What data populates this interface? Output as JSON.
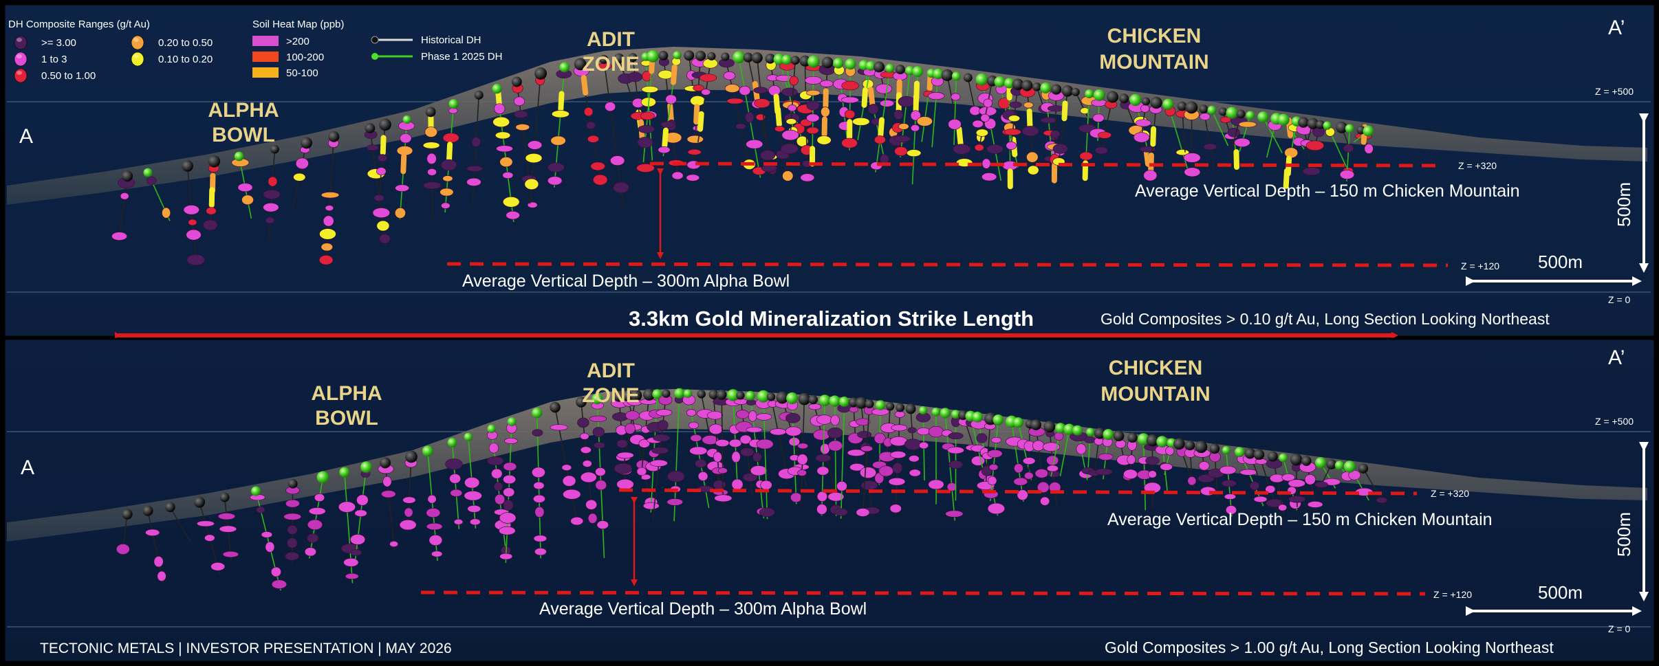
{
  "legend": {
    "dh_title": "DH Composite Ranges (g/t Au)",
    "dh_items": [
      {
        "label": ">= 3.00",
        "color": "#4a1e5a"
      },
      {
        "label": "1 to 3",
        "color": "#e24bd6"
      },
      {
        "label": "0.50 to 1.00",
        "color": "#e0233a"
      },
      {
        "label": "0.20 to 0.50",
        "color": "#f6a23a"
      },
      {
        "label": "0.10 to 0.20",
        "color": "#f2ee2a"
      }
    ],
    "soil_title": "Soil Heat Map (ppb)",
    "soil_items": [
      {
        "label": ">200",
        "color": "#d94fcf"
      },
      {
        "label": "100-200",
        "color": "#f2481e"
      },
      {
        "label": "50-100",
        "color": "#f6b21c"
      }
    ],
    "historical_dh": "Historical DH",
    "phase1_dh": "Phase 1 2025 DH"
  },
  "panels": [
    {
      "point_a": "A",
      "point_a_prime": "A’",
      "zones": {
        "alpha_1": "ALPHA",
        "alpha_2": "BOWL",
        "adit_1": "ADIT",
        "adit_2": "ZONE",
        "chicken_1": "CHICKEN",
        "chicken_2": "MOUNTAIN"
      },
      "z500": "Z = +500",
      "z320": "Z = +320",
      "z120": "Z = +120",
      "z0": "Z = 0",
      "depth_chicken": "Average Vertical Depth – 150 m Chicken Mountain",
      "depth_alpha": "Average Vertical Depth – 300m Alpha Bowl",
      "scale_vertical": "500m",
      "scale_horizontal": "500m",
      "caption": "Gold Composites > 0.10 g/t Au, Long Section Looking Northeast"
    },
    {
      "point_a": "A",
      "point_a_prime": "A’",
      "zones": {
        "alpha_1": "ALPHA",
        "alpha_2": "BOWL",
        "adit_1": "ADIT",
        "adit_2": "ZONE",
        "chicken_1": "CHICKEN",
        "chicken_2": "MOUNTAIN"
      },
      "z500": "Z = +500",
      "z320": "Z = +320",
      "z120": "Z = +120",
      "z0": "Z = 0",
      "depth_chicken": "Average Vertical Depth – 150 m Chicken Mountain",
      "depth_alpha": "Average Vertical Depth – 300m Alpha Bowl",
      "scale_vertical": "500m",
      "scale_horizontal": "500m",
      "caption": "Gold Composites > 1.00 g/t Au, Long Section Looking Northeast"
    }
  ],
  "strike_length": "3.3km Gold Mineralization Strike Length",
  "footer": "TECTONIC METALS | INVESTOR PRESENTATION | MAY 2026"
}
